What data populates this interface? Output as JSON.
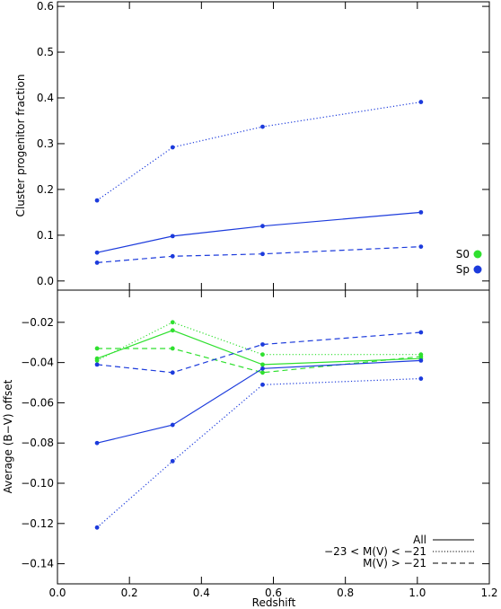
{
  "chart_data": [
    {
      "type": "line",
      "panel": "top",
      "ylabel": "Cluster progenitor fraction",
      "xlabel": "",
      "xlim": [
        0.0,
        1.2
      ],
      "ylim": [
        -0.02,
        0.61
      ],
      "yticks": [
        "0.0",
        "0.1",
        "0.2",
        "0.3",
        "0.4",
        "0.5",
        "0.6"
      ],
      "x": [
        0.11,
        0.32,
        0.57,
        1.01
      ],
      "series": [
        {
          "name": "Sp",
          "group": "Sp",
          "style": "solid",
          "color": "#1c3bdc",
          "values": [
            0.062,
            0.098,
            0.12,
            0.15
          ]
        },
        {
          "name": "Sp",
          "group": "Sp",
          "style": "dotted",
          "color": "#1c3bdc",
          "values": [
            0.176,
            0.292,
            0.337,
            0.391
          ]
        },
        {
          "name": "Sp",
          "group": "Sp",
          "style": "dashed",
          "color": "#1c3bdc",
          "values": [
            0.04,
            0.054,
            0.059,
            0.075
          ]
        }
      ],
      "legend": {
        "placement": "bottom-right",
        "items": [
          {
            "label": "S0",
            "color": "#2fe02f"
          },
          {
            "label": "Sp",
            "color": "#1c3bdc"
          }
        ]
      }
    },
    {
      "type": "line",
      "panel": "bottom",
      "ylabel": "Average (B−V) offset",
      "xlabel": "Redshift",
      "xlim": [
        0.0,
        1.2
      ],
      "ylim": [
        -0.15,
        -0.004
      ],
      "yticks": [
        "−0.02",
        "−0.04",
        "−0.06",
        "−0.08",
        "−0.10",
        "−0.12",
        "−0.14"
      ],
      "xticks": [
        "0.0",
        "0.2",
        "0.4",
        "0.6",
        "0.8",
        "1.0",
        "1.2"
      ],
      "x": [
        0.11,
        0.32,
        0.57,
        1.01
      ],
      "series": [
        {
          "name": "S0",
          "group": "S0",
          "style": "solid",
          "color": "#2fe02f",
          "values": [
            -0.038,
            -0.024,
            -0.041,
            -0.038
          ]
        },
        {
          "name": "S0",
          "group": "S0",
          "style": "dotted",
          "color": "#2fe02f",
          "values": [
            -0.039,
            -0.02,
            -0.036,
            -0.036
          ]
        },
        {
          "name": "S0",
          "group": "S0",
          "style": "dashed",
          "color": "#2fe02f",
          "values": [
            -0.033,
            -0.033,
            -0.045,
            -0.037
          ]
        },
        {
          "name": "Sp",
          "group": "Sp",
          "style": "solid",
          "color": "#1c3bdc",
          "values": [
            -0.08,
            -0.071,
            -0.043,
            -0.039
          ]
        },
        {
          "name": "Sp",
          "group": "Sp",
          "style": "dotted",
          "color": "#1c3bdc",
          "values": [
            -0.122,
            -0.089,
            -0.051,
            -0.048
          ]
        },
        {
          "name": "Sp",
          "group": "Sp",
          "style": "dashed",
          "color": "#1c3bdc",
          "values": [
            -0.041,
            -0.045,
            -0.031,
            -0.025
          ]
        }
      ],
      "legend": {
        "placement": "bottom-right",
        "items": [
          {
            "label": "All",
            "style": "solid"
          },
          {
            "label": "−23 < M(V) < −21",
            "style": "dotted"
          },
          {
            "label": "M(V) > −21",
            "style": "dashed"
          }
        ]
      }
    }
  ]
}
